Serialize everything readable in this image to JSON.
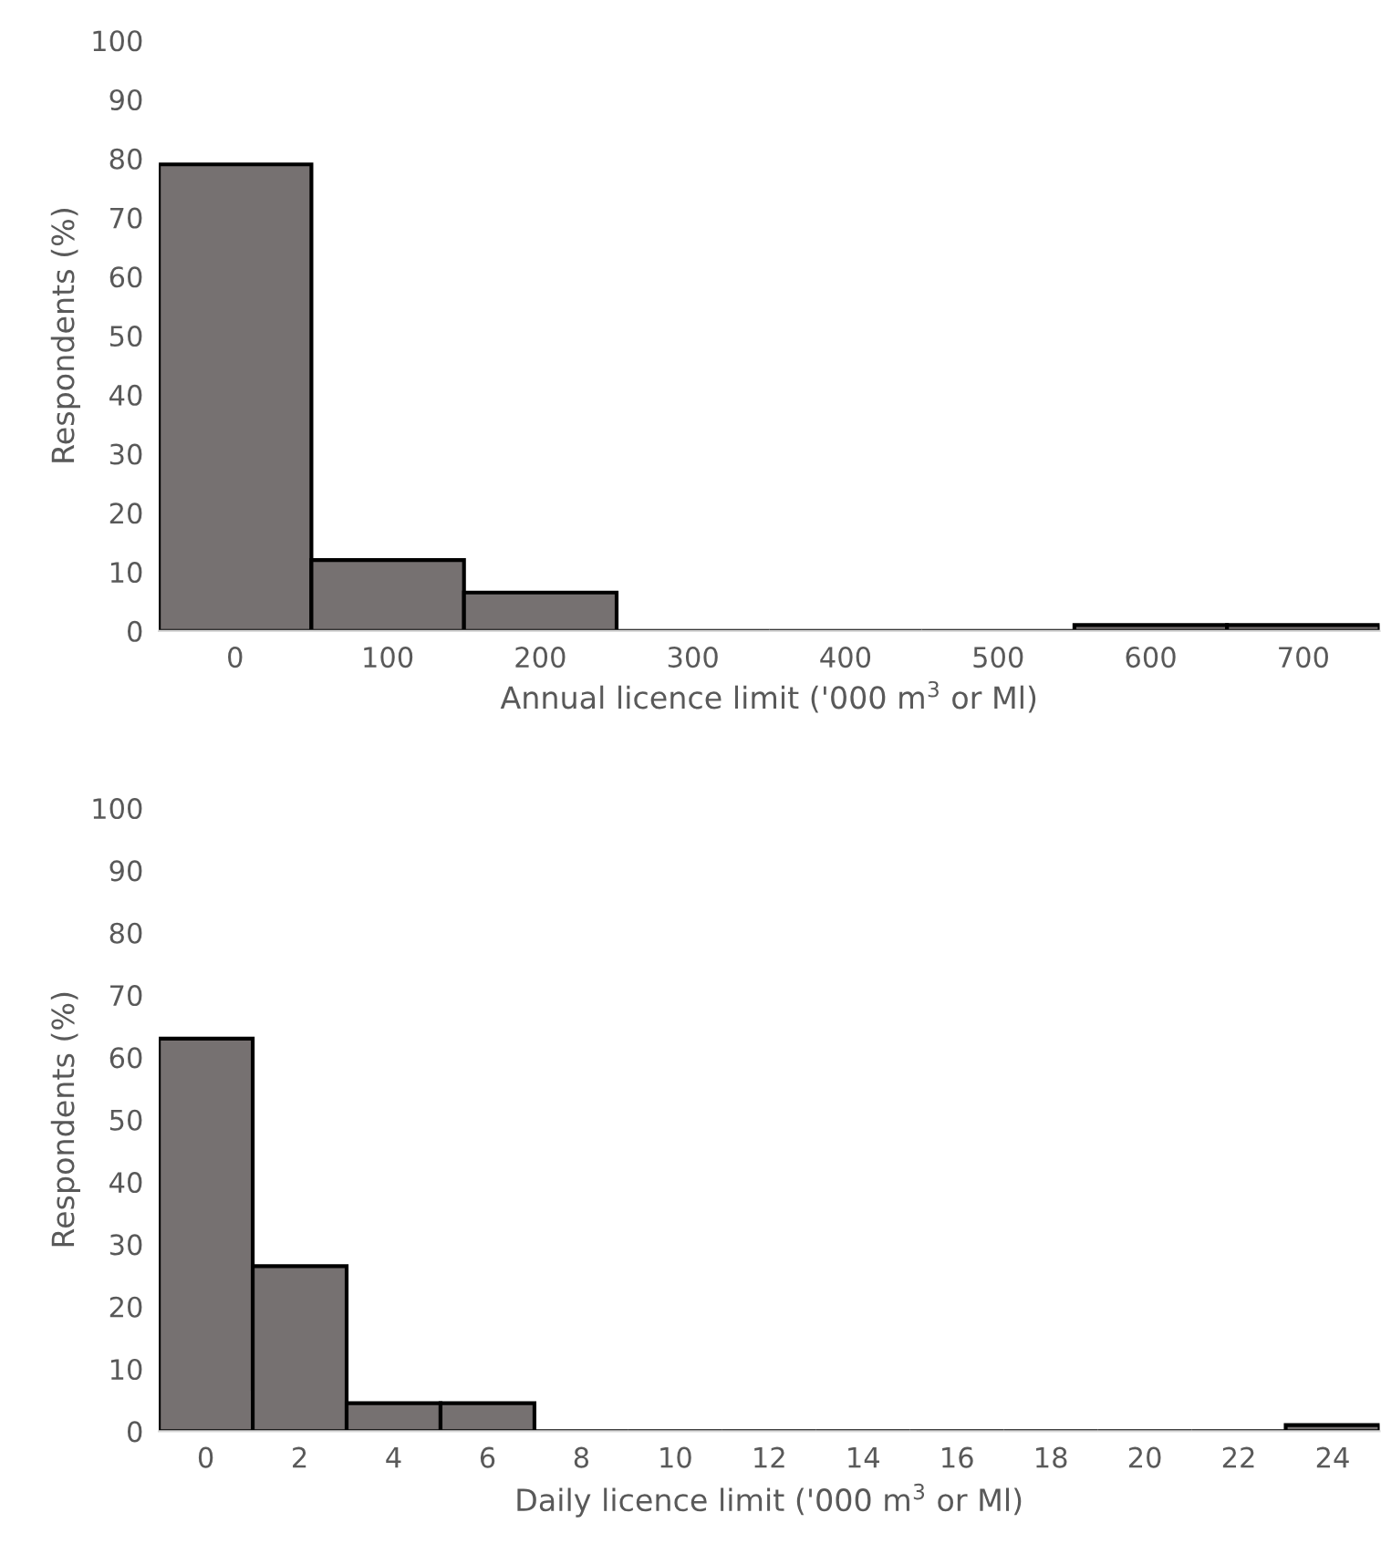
{
  "chart_data": [
    {
      "type": "histogram",
      "xlabel": "Annual licence limit ('000 m$^{3}$ or Ml)",
      "ylabel": "Respondents (%)",
      "bins": [
        -50,
        50,
        150,
        250,
        350,
        450,
        550,
        650,
        750
      ],
      "values": [
        79,
        12,
        6.5,
        0,
        0,
        0,
        1,
        1
      ],
      "color": "#767171",
      "xlim": [
        -50,
        750
      ],
      "xticks": [
        0,
        100,
        200,
        300,
        400,
        500,
        600,
        700
      ],
      "ylim": [
        0,
        100
      ],
      "yticks": [
        0,
        10,
        20,
        30,
        40,
        50,
        60,
        70,
        80,
        90,
        100
      ],
      "grid": false
    },
    {
      "type": "histogram",
      "xlabel": "Daily licence limit ('000 m$^{3}$ or Ml)",
      "ylabel": "Respondents (%)",
      "bins": [
        -1,
        1,
        3,
        5,
        7,
        9,
        11,
        13,
        15,
        17,
        19,
        21,
        23,
        25
      ],
      "values": [
        63,
        26.5,
        4.5,
        4.5,
        0,
        0,
        0,
        0,
        0,
        0,
        0,
        0,
        1
      ],
      "color": "#767171",
      "xlim": [
        -1,
        25
      ],
      "xticks": [
        0,
        2,
        4,
        6,
        8,
        10,
        12,
        14,
        16,
        18,
        20,
        22,
        24
      ],
      "ylim": [
        0,
        100
      ],
      "yticks": [
        0,
        10,
        20,
        30,
        40,
        50,
        60,
        70,
        80,
        90,
        100
      ],
      "grid": false
    }
  ]
}
